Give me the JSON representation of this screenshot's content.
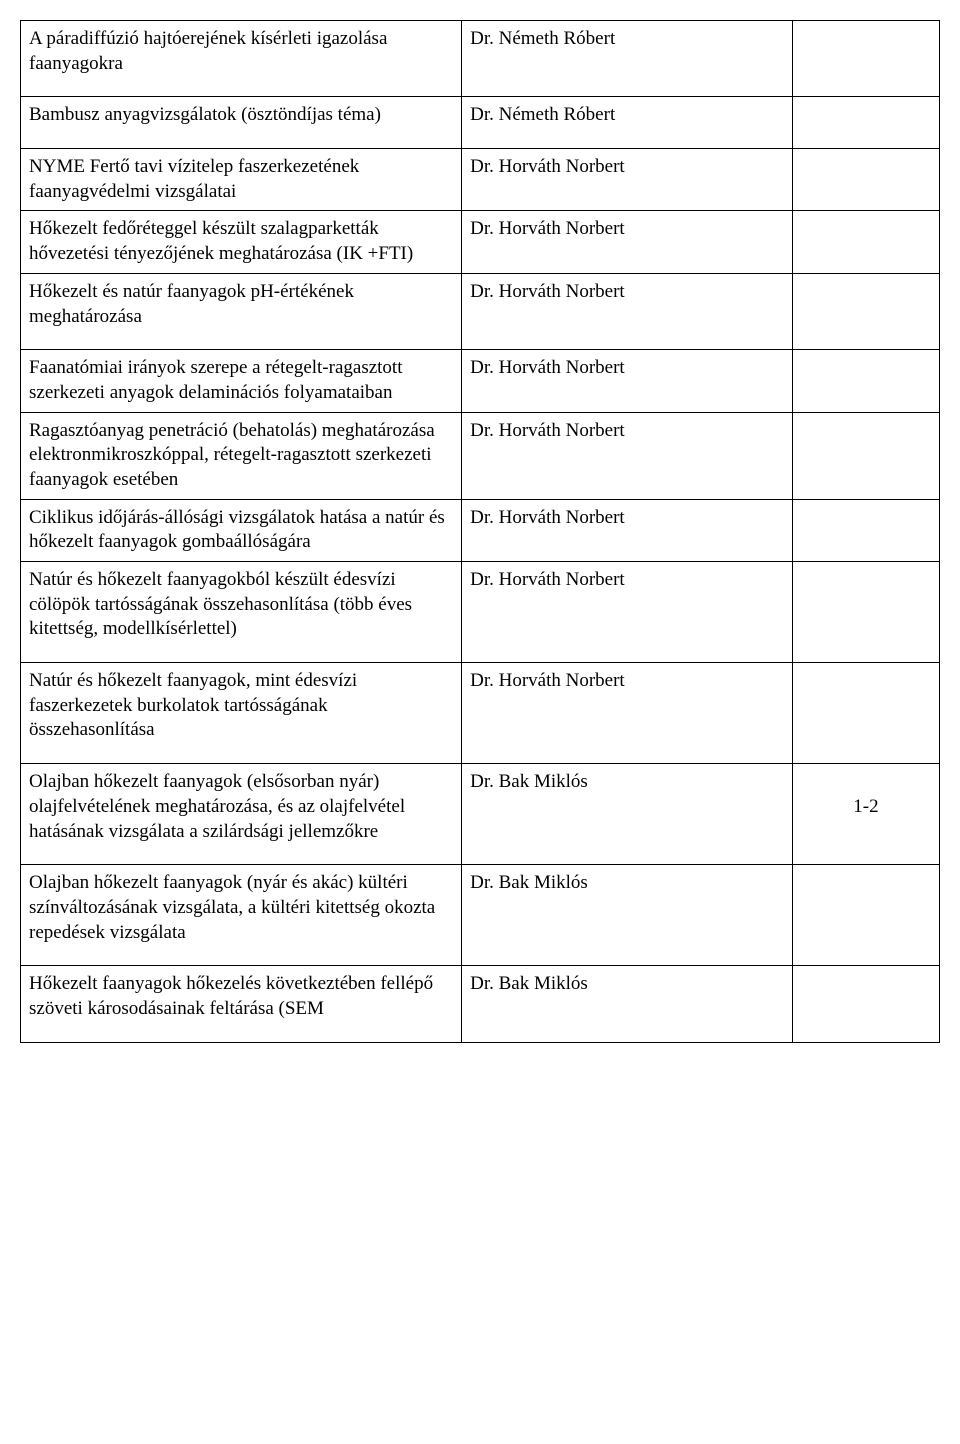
{
  "table": {
    "columns": [
      "topic",
      "supervisor",
      "count"
    ],
    "col_widths": [
      "48%",
      "36%",
      "16%"
    ],
    "border_color": "#000000",
    "background_color": "#ffffff",
    "font_family": "Times New Roman",
    "font_size_pt": 14,
    "rows": [
      {
        "topic": "A páradiffúzió hajtóerejének kísérleti igazolása faanyagokra",
        "supervisor": "Dr. Németh Róbert",
        "count": ""
      },
      {
        "topic": "Bambusz anyagvizsgálatok (ösztöndíjas téma)",
        "supervisor": "Dr. Németh Róbert",
        "count": ""
      },
      {
        "topic": "NYME Fertő tavi vízitelep faszerkezetének faanyagvédelmi vizsgálatai",
        "supervisor": "Dr. Horváth Norbert",
        "count": ""
      },
      {
        "topic": "Hőkezelt fedőréteggel készült szalagparketták hővezetési tényezőjének meghatározása (IK +FTI)",
        "supervisor": "Dr. Horváth Norbert",
        "count": ""
      },
      {
        "topic": "Hőkezelt és natúr faanyagok pH-értékének meghatározása",
        "supervisor": "Dr. Horváth Norbert",
        "count": ""
      },
      {
        "topic": "Faanatómiai irányok szerepe a rétegelt-ragasztott szerkezeti anyagok delaminációs folyamataiban",
        "supervisor": "Dr. Horváth Norbert",
        "count": ""
      },
      {
        "topic": "Ragasztóanyag penetráció (behatolás) meghatározása elektronmikroszkóppal, rétegelt-ragasztott szerkezeti faanyagok esetében",
        "supervisor": "Dr. Horváth Norbert",
        "count": ""
      },
      {
        "topic": "Ciklikus időjárás-állósági vizsgálatok hatása a natúr és hőkezelt faanyagok gombaállóságára",
        "supervisor": "Dr. Horváth Norbert",
        "count": ""
      },
      {
        "topic": "Natúr és hőkezelt faanyagokból készült édesvízi cölöpök tartósságának összehasonlítása (több éves kitettség, modellkísérlettel)",
        "supervisor": "Dr. Horváth Norbert",
        "count": ""
      },
      {
        "topic": "Natúr és hőkezelt faanyagok, mint édesvízi faszerkezetek burkolatok tartósságának összehasonlítása",
        "supervisor": "Dr. Horváth Norbert",
        "count": ""
      },
      {
        "topic": "Olajban hőkezelt faanyagok (elsősorban nyár) olajfelvételének meghatározása, és az olajfelvétel hatásának vizsgálata a szilárdsági jellemzőkre",
        "supervisor": "Dr. Bak Miklós",
        "count": "1-2"
      },
      {
        "topic": "Olajban hőkezelt faanyagok (nyár és akác) kültéri színváltozásának vizsgálata, a kültéri kitettség okozta repedések vizsgálata",
        "supervisor": "Dr. Bak Miklós",
        "count": ""
      },
      {
        "topic": "Hőkezelt faanyagok hőkezelés következtében fellépő szöveti károsodásainak feltárása (SEM",
        "supervisor": "Dr. Bak Miklós",
        "count": ""
      }
    ],
    "row_padding_class": [
      "",
      "",
      "short-pad",
      "short-pad",
      "",
      "short-pad",
      "short-pad",
      "short-pad",
      "",
      "",
      "",
      "",
      ""
    ]
  }
}
